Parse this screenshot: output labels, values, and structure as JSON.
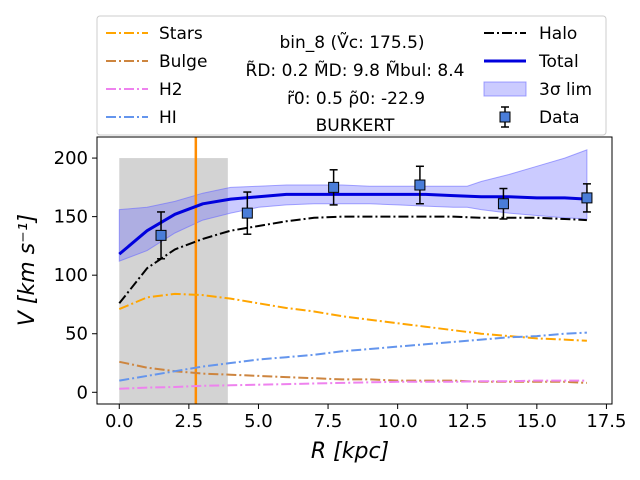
{
  "chart_data": {
    "type": "line",
    "xlabel": "R [kpc]",
    "ylabel": "V [km s⁻¹]",
    "xlim": [
      -0.8,
      17.7
    ],
    "ylim": [
      -10,
      218
    ],
    "xticks": [
      0,
      2.5,
      5,
      7.5,
      10,
      12.5,
      15,
      17.5
    ],
    "xtick_labels": [
      "0.0",
      "2.5",
      "5.0",
      "7.5",
      "10.0",
      "12.5",
      "15.0",
      "17.5"
    ],
    "yticks": [
      0,
      50,
      100,
      150,
      200
    ],
    "ytick_labels": [
      "0",
      "50",
      "100",
      "150",
      "200"
    ],
    "shaded_region": {
      "x": [
        0,
        3.9
      ],
      "y": [
        -10,
        200
      ],
      "color": "#d3d3d3"
    },
    "vertical_line": {
      "x": 2.75,
      "color": "#ff8c00"
    },
    "info": {
      "line1": "bin_8 (Ṽc: 175.5)",
      "line2": "R̃D: 0.2  M̃D: 9.8  M̃bul: 8.4",
      "line3": "r̃0: 0.5   ρ̃0: -22.9",
      "line4": "BURKERT"
    },
    "legend_left": [
      {
        "name": "Stars",
        "color": "#ffa500",
        "dash": "dashdot"
      },
      {
        "name": "Bulge",
        "color": "#cd853f",
        "dash": "dashdot"
      },
      {
        "name": "H2",
        "color": "#ee82ee",
        "dash": "dashdot"
      },
      {
        "name": "HI",
        "color": "#6495ed",
        "dash": "dashdot"
      }
    ],
    "legend_right": [
      {
        "name": "Halo",
        "color": "#000000",
        "dash": "dashdot",
        "kind": "line"
      },
      {
        "name": "Total",
        "color": "#0000dd",
        "dash": "solid",
        "kind": "line"
      },
      {
        "name": "3σ lim",
        "color": "#6a6aff",
        "kind": "patch"
      },
      {
        "name": "Data",
        "color": "#4a7dd9",
        "kind": "marker"
      }
    ],
    "x": [
      0,
      1,
      2,
      3,
      4,
      5,
      6,
      7,
      8,
      9,
      10,
      11,
      12,
      13,
      14,
      15,
      16,
      16.8
    ],
    "series": [
      {
        "name": "Stars",
        "color": "#ffa500",
        "dash": "dashdot",
        "width": 2,
        "values": [
          71,
          81,
          84,
          83,
          80,
          76,
          72,
          69,
          65,
          62,
          59,
          56,
          53,
          50,
          48,
          46,
          45,
          44
        ]
      },
      {
        "name": "Bulge",
        "color": "#cd853f",
        "dash": "dashdot",
        "width": 2,
        "values": [
          26,
          21,
          18,
          16,
          15,
          14,
          13,
          12,
          11,
          11,
          10,
          10,
          10,
          9,
          9,
          9,
          9,
          8
        ]
      },
      {
        "name": "H2",
        "color": "#ee82ee",
        "dash": "dashdot",
        "width": 2,
        "values": [
          3,
          4,
          4.5,
          5.5,
          6,
          6.5,
          7,
          7.5,
          8,
          8.5,
          9,
          9,
          9,
          9.5,
          9.5,
          10,
          10,
          10
        ]
      },
      {
        "name": "HI",
        "color": "#6495ed",
        "dash": "dashdot",
        "width": 2,
        "values": [
          10,
          14,
          18,
          22,
          25,
          28,
          30,
          32,
          35,
          37,
          39,
          41,
          43,
          45,
          47,
          48,
          50,
          51
        ]
      },
      {
        "name": "Halo",
        "color": "#000000",
        "dash": "dashdot",
        "width": 2,
        "values": [
          76,
          106,
          122,
          131,
          138,
          142,
          146,
          149,
          150,
          150,
          150,
          150,
          150,
          149,
          149,
          149,
          148,
          147
        ]
      },
      {
        "name": "Total",
        "color": "#0000dd",
        "dash": "solid",
        "width": 3,
        "values": [
          118,
          138,
          152,
          161,
          165,
          167,
          169,
          169,
          169,
          169,
          169,
          169,
          168,
          167,
          167,
          166,
          166,
          165
        ]
      }
    ],
    "band": {
      "name": "3σ lim",
      "x": [
        0,
        1,
        2,
        3,
        4,
        5,
        6,
        7,
        8,
        9,
        10,
        11,
        12,
        12.5,
        13,
        14,
        15,
        16,
        16.8
      ],
      "upper": [
        156,
        158,
        163,
        170,
        175,
        176,
        177,
        177,
        177,
        176,
        176,
        176,
        176,
        176,
        180,
        186,
        193,
        200,
        207
      ],
      "lower": [
        112,
        121,
        136,
        147,
        153,
        158,
        160,
        161,
        161,
        161,
        160,
        159,
        158,
        158,
        156,
        153,
        151,
        149,
        148
      ]
    },
    "data_points": {
      "name": "Data",
      "x": [
        1.5,
        4.6,
        7.7,
        10.8,
        13.8,
        16.8
      ],
      "y": [
        134,
        153,
        175,
        177,
        161,
        166
      ],
      "err": [
        20,
        18,
        15,
        16,
        13,
        12
      ]
    }
  }
}
